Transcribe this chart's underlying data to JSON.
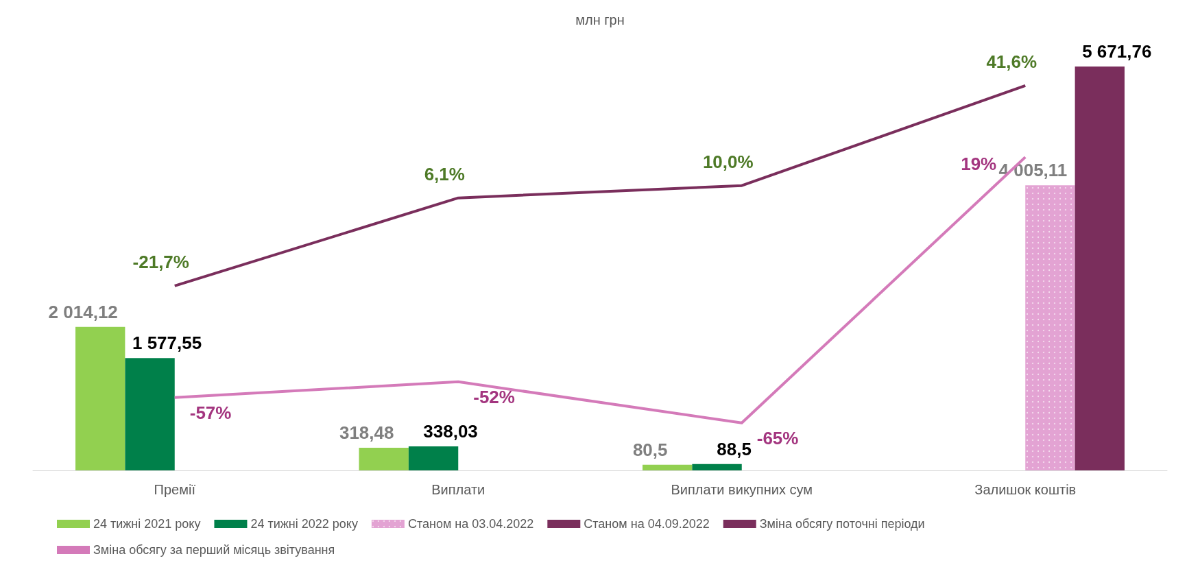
{
  "chart_data": {
    "type": "bar",
    "title": "млн грн",
    "categories": [
      "Премії",
      "Виплати",
      "Виплати викупних сум",
      "Залишок коштів"
    ],
    "series": [
      {
        "name": "24 тижні 2021 року",
        "color": "#92d050",
        "values": [
          2014.12,
          318.48,
          80.5,
          null
        ],
        "value_labels": [
          "2 014,12",
          "318,48",
          "80,5",
          null
        ]
      },
      {
        "name": "24 тижні 2022 року",
        "color": "#00804a",
        "values": [
          1577.55,
          338.03,
          88.5,
          null
        ],
        "value_labels": [
          "1 577,55",
          "338,03",
          "88,5",
          null
        ]
      },
      {
        "name": "Станом на 03.04.2022",
        "color": "#e3a3d3",
        "values": [
          null,
          null,
          null,
          4005.11
        ],
        "value_labels": [
          null,
          null,
          null,
          "4 005,11"
        ]
      },
      {
        "name": "Станом на 04.09.2022",
        "color": "#7a2e5c",
        "values": [
          null,
          null,
          null,
          5671.76
        ],
        "value_labels": [
          null,
          null,
          null,
          "5 671,76"
        ]
      },
      {
        "name": "Зміна обсягу поточні періоди",
        "type": "line",
        "axis": "y2",
        "color": "#7a2e5c",
        "values": [
          -21.7,
          6.1,
          10.0,
          41.6
        ],
        "value_labels": [
          "-21,7%",
          "6,1%",
          "10,0%",
          "41,6%"
        ]
      },
      {
        "name": "Зміна обсягу за перший місяць звітування",
        "type": "line",
        "axis": "y2",
        "color": "#d47ab9",
        "values": [
          -57,
          -52,
          -65,
          19
        ],
        "value_labels": [
          "-57%",
          "-52%",
          "-65%",
          "19%"
        ]
      }
    ],
    "legend": "bottom",
    "grid": false,
    "marker": "none"
  }
}
